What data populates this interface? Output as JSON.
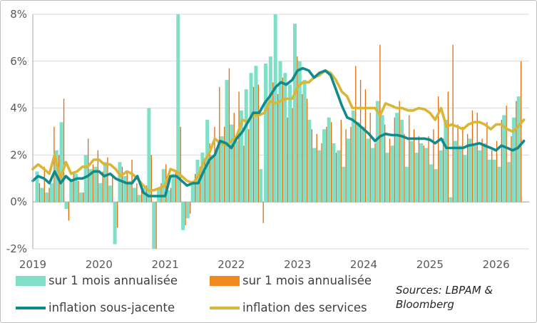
{
  "chart_data": {
    "type": "bar+line",
    "ylim": [
      -2,
      8
    ],
    "yticks": [
      "-2%",
      "0%",
      "2%",
      "4%",
      "6%",
      "8%"
    ],
    "xlim": [
      2019.0,
      2026.5
    ],
    "xticks": [
      2019,
      2020,
      2021,
      2022,
      2023,
      2024,
      2025,
      2026
    ],
    "grid": "horizontal",
    "legend_placement": "bottom",
    "colors": {
      "teal_bar": "#7fe0c7",
      "orange_bar": "#e26b0a",
      "teal_line": "#0f8b8d",
      "gold_line": "#dbb534",
      "grid": "#d9d9d9",
      "axis": "#a6a6a6"
    },
    "legend": {
      "bar1": "sur 1 mois annualisée",
      "bar2": "sur 1 mois annualisée",
      "line1": "inflation sous-jacente",
      "line2": "inflation des services"
    },
    "source": "Sources: LBPAM & Bloomberg",
    "series": [
      {
        "name": "sur 1 mois annualisée",
        "kind": "bar",
        "color": "teal_bar",
        "values": [
          1.3,
          0.6,
          0.4,
          0.8,
          2.2,
          3.4,
          -0.3,
          0.9,
          1.2,
          0.4,
          2.0,
          1.4,
          1.5,
          0.8,
          1.7,
          0.7,
          -1.8,
          1.7,
          1.1,
          0.9,
          0.6,
          0.3,
          0.6,
          4.0,
          -2.0,
          0.6,
          1.4,
          0.5,
          1.2,
          8.2,
          -1.2,
          -0.7,
          0.9,
          1.8,
          2.1,
          3.5,
          2.0,
          2.3,
          2.8,
          5.2,
          3.3,
          2.6,
          3.9,
          4.8,
          5.5,
          5.8,
          1.4,
          5.9,
          6.2,
          8.1,
          6.0,
          5.5,
          5.0,
          7.6,
          6.0,
          5.2,
          3.5,
          2.3,
          2.2,
          3.1,
          3.6,
          2.5,
          2.2,
          1.5,
          2.7,
          3.9,
          3.4,
          3.2,
          2.7,
          2.3,
          4.3,
          3.7,
          2.1,
          2.4,
          3.8,
          3.5,
          1.5,
          2.6,
          2.1,
          2.5,
          2.3,
          1.6,
          1.4,
          2.2,
          3.5,
          0.2,
          2.6,
          2.4,
          2.0,
          2.7,
          2.4,
          2.2,
          2.5,
          1.8,
          1.8,
          1.5,
          3.7,
          1.7,
          3.6,
          4.5
        ]
      },
      {
        "name": "sur 1 mois annualisée",
        "kind": "bar",
        "color": "orange_bar",
        "values": [
          0.8,
          1.5,
          0.6,
          3.2,
          2.0,
          4.4,
          -0.8,
          1.3,
          0.9,
          0.4,
          2.7,
          1.6,
          2.2,
          1.3,
          1.9,
          1.2,
          -1.1,
          1.5,
          1.3,
          1.8,
          0.8,
          0.6,
          0.7,
          2.0,
          -2.0,
          0.8,
          1.6,
          0.6,
          1.3,
          3.2,
          -1.0,
          -0.5,
          1.2,
          1.5,
          1.8,
          2.5,
          3.2,
          4.9,
          3.2,
          5.7,
          3.8,
          4.7,
          2.4,
          3.1,
          4.9,
          5.0,
          -0.9,
          4.2,
          5.1,
          4.6,
          5.3,
          3.6,
          4.0,
          6.2,
          4.6,
          4.4,
          3.1,
          2.9,
          2.5,
          3.2,
          3.4,
          2.1,
          3.5,
          3.1,
          3.2,
          5.8,
          5.2,
          4.8,
          3.8,
          2.5,
          6.7,
          3.3,
          2.7,
          3.6,
          4.3,
          2.9,
          3.7,
          3.1,
          2.8,
          2.4,
          2.8,
          3.1,
          4.5,
          2.7,
          4.7,
          6.7,
          3.3,
          3.2,
          2.9,
          3.9,
          3.8,
          2.7,
          3.4,
          2.2,
          2.6,
          3.5,
          4.1,
          2.8,
          4.3,
          6.0
        ]
      },
      {
        "name": "inflation sous-jacente",
        "kind": "line",
        "color": "teal_line",
        "x": [
          2019.0,
          2019.08,
          2019.17,
          2019.25,
          2019.33,
          2019.42,
          2019.5,
          2019.58,
          2019.67,
          2019.75,
          2019.83,
          2019.92,
          2020.0,
          2020.08,
          2020.17,
          2020.25,
          2020.33,
          2020.42,
          2020.5,
          2020.58,
          2020.67,
          2020.75,
          2020.83,
          2020.92,
          2021.0,
          2021.08,
          2021.17,
          2021.25,
          2021.33,
          2021.42,
          2021.5,
          2021.58,
          2021.67,
          2021.75,
          2021.83,
          2021.92,
          2022.0,
          2022.08,
          2022.17,
          2022.25,
          2022.33,
          2022.42,
          2022.5,
          2022.58,
          2022.67,
          2022.75,
          2022.83,
          2022.92,
          2023.0,
          2023.08,
          2023.17,
          2023.25,
          2023.33,
          2023.42,
          2023.5,
          2023.58,
          2023.67,
          2023.75,
          2023.83,
          2023.92,
          2024.0,
          2024.08,
          2024.17,
          2024.25,
          2024.33,
          2024.42,
          2024.5,
          2024.58,
          2024.67,
          2024.75,
          2024.83,
          2024.92,
          2025.0,
          2025.08,
          2025.17,
          2025.25,
          2025.33,
          2025.42,
          2025.5,
          2025.58,
          2025.67,
          2025.75,
          2025.83,
          2025.92,
          2026.0,
          2026.08,
          2026.17,
          2026.25,
          2026.33,
          2026.42
        ],
        "values": [
          0.9,
          1.1,
          1.0,
          0.8,
          1.3,
          0.8,
          1.1,
          0.9,
          1.0,
          1.0,
          1.1,
          1.3,
          1.3,
          1.1,
          1.2,
          1.0,
          0.9,
          0.8,
          0.8,
          1.1,
          0.4,
          0.25,
          0.25,
          0.25,
          0.25,
          1.1,
          1.1,
          0.9,
          0.7,
          0.8,
          0.8,
          1.3,
          1.8,
          2.0,
          2.6,
          2.5,
          2.3,
          2.7,
          3.0,
          3.4,
          3.8,
          3.8,
          4.2,
          4.5,
          4.9,
          5.1,
          5.0,
          5.2,
          5.6,
          5.7,
          5.6,
          5.3,
          5.5,
          5.6,
          5.4,
          4.8,
          4.1,
          3.6,
          3.5,
          3.3,
          3.1,
          2.9,
          2.6,
          2.8,
          2.9,
          2.85,
          2.85,
          2.8,
          2.7,
          2.7,
          2.7,
          2.7,
          2.65,
          2.5,
          2.7,
          2.3,
          2.3,
          2.3,
          2.3,
          2.4,
          2.45,
          2.5,
          2.4,
          2.3,
          2.2,
          2.4,
          2.3,
          2.2,
          2.3,
          2.6
        ]
      },
      {
        "name": "inflation des services",
        "kind": "line",
        "color": "gold_line",
        "x": [
          2019.0,
          2019.08,
          2019.17,
          2019.25,
          2019.33,
          2019.42,
          2019.5,
          2019.58,
          2019.67,
          2019.75,
          2019.83,
          2019.92,
          2020.0,
          2020.08,
          2020.17,
          2020.25,
          2020.33,
          2020.42,
          2020.5,
          2020.58,
          2020.67,
          2020.75,
          2020.83,
          2020.92,
          2021.0,
          2021.08,
          2021.17,
          2021.25,
          2021.33,
          2021.42,
          2021.5,
          2021.58,
          2021.67,
          2021.75,
          2021.83,
          2021.92,
          2022.0,
          2022.08,
          2022.17,
          2022.25,
          2022.33,
          2022.42,
          2022.5,
          2022.58,
          2022.67,
          2022.75,
          2022.83,
          2022.92,
          2023.0,
          2023.08,
          2023.17,
          2023.25,
          2023.33,
          2023.42,
          2023.5,
          2023.58,
          2023.67,
          2023.75,
          2023.83,
          2023.92,
          2024.0,
          2024.08,
          2024.17,
          2024.25,
          2024.33,
          2024.42,
          2024.5,
          2024.58,
          2024.67,
          2024.75,
          2024.83,
          2024.92,
          2025.0,
          2025.08,
          2025.17,
          2025.25,
          2025.33,
          2025.42,
          2025.5,
          2025.58,
          2025.67,
          2025.75,
          2025.83,
          2025.92,
          2026.0,
          2026.08,
          2026.17,
          2026.25,
          2026.33,
          2026.42
        ],
        "values": [
          1.4,
          1.6,
          1.4,
          1.2,
          2.0,
          1.0,
          1.7,
          1.2,
          1.3,
          1.5,
          1.5,
          1.8,
          1.8,
          1.6,
          1.6,
          1.4,
          1.1,
          1.3,
          1.2,
          1.0,
          0.7,
          0.5,
          0.5,
          0.6,
          0.7,
          1.4,
          1.3,
          1.1,
          0.9,
          0.8,
          1.1,
          1.7,
          2.1,
          2.7,
          2.5,
          2.4,
          2.6,
          2.8,
          3.5,
          3.4,
          3.7,
          3.7,
          3.8,
          4.3,
          4.2,
          4.3,
          4.4,
          4.4,
          4.9,
          5.1,
          5.1,
          5.3,
          5.4,
          5.6,
          5.5,
          5.2,
          4.7,
          4.5,
          4.0,
          4.0,
          4.0,
          4.0,
          4.0,
          3.7,
          4.2,
          4.1,
          4.0,
          4.0,
          3.9,
          3.9,
          4.0,
          3.95,
          3.8,
          3.5,
          4.0,
          3.2,
          3.3,
          3.2,
          3.1,
          3.3,
          3.4,
          3.4,
          3.3,
          3.1,
          3.3,
          3.3,
          3.1,
          3.0,
          3.2,
          3.5
        ]
      }
    ]
  }
}
